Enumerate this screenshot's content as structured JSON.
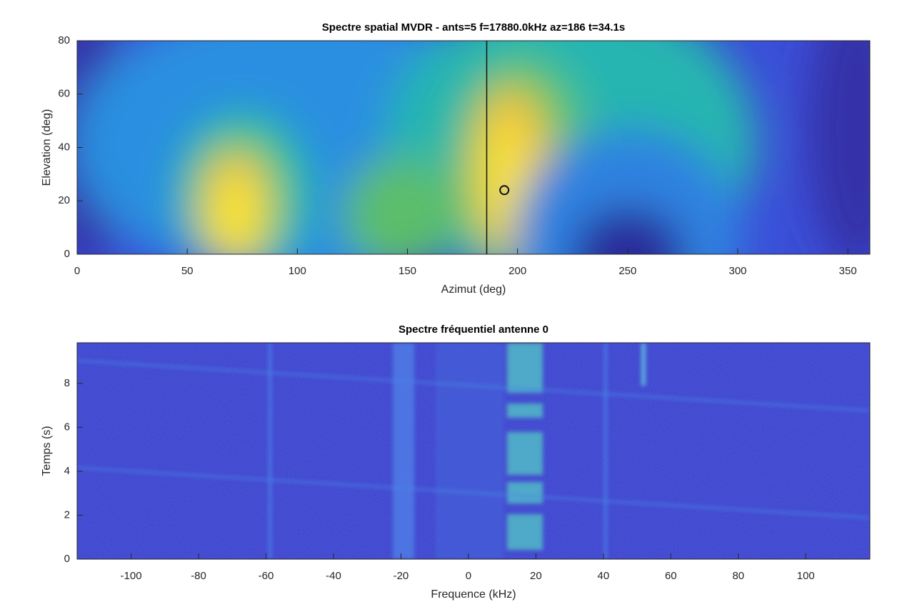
{
  "chart_data": [
    {
      "type": "heatmap",
      "title": "Spectre spatial MVDR - ants=5 f=17880.0kHz az=186 t=34.1s",
      "xlabel": "Azimut (deg)",
      "ylabel": "Elevation (deg)",
      "xlim": [
        0,
        360
      ],
      "ylim": [
        0,
        80
      ],
      "xticks": [
        0,
        50,
        100,
        150,
        200,
        250,
        300,
        350
      ],
      "yticks": [
        0,
        20,
        40,
        60,
        80
      ],
      "cursor_x": 186,
      "marker": {
        "x": 194,
        "y": 24
      }
    },
    {
      "type": "spectrogram",
      "title": "Spectre fréquentiel antenne 0",
      "xlabel": "Frequence (kHz)",
      "ylabel": "Temps (s)",
      "xlim": [
        -116,
        119
      ],
      "ylim": [
        0,
        9.85
      ],
      "xticks": [
        -100,
        -80,
        -60,
        -40,
        -20,
        0,
        20,
        40,
        60,
        80,
        100
      ],
      "yticks": [
        0,
        2,
        4,
        6,
        8
      ]
    }
  ]
}
